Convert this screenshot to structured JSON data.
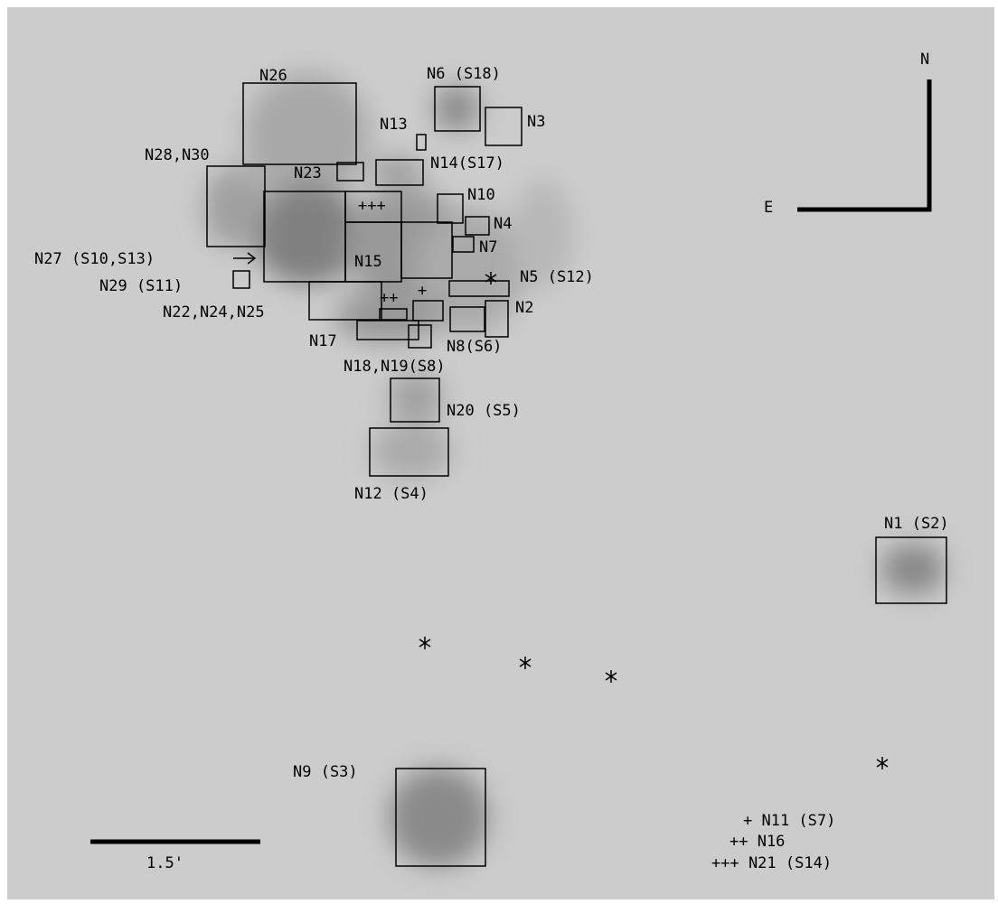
{
  "regions": [
    "N26",
    "N6 (S18)",
    "N3",
    "N13",
    "N28,N30",
    "N23",
    "N14(S17)",
    "N10",
    "N4",
    "N7",
    "N15",
    "N27 (S10,S13)",
    "N5 (S12)",
    "N29 (S11)",
    "N22,N24,N25",
    "N2",
    "N17",
    "N8(S6)",
    "N18,N19(S8)",
    "N20 (S5)",
    "N12 (S4)",
    "N1 (S2)",
    "N9 (S3)"
  ],
  "markers": [
    "+++",
    "++",
    "+"
  ],
  "compass": {
    "north": "N",
    "east": "E"
  },
  "scale_bar": "1.5'",
  "legend": [
    "+ N11 (S7)",
    "++ N16",
    "+++ N21 (S14)"
  ]
}
